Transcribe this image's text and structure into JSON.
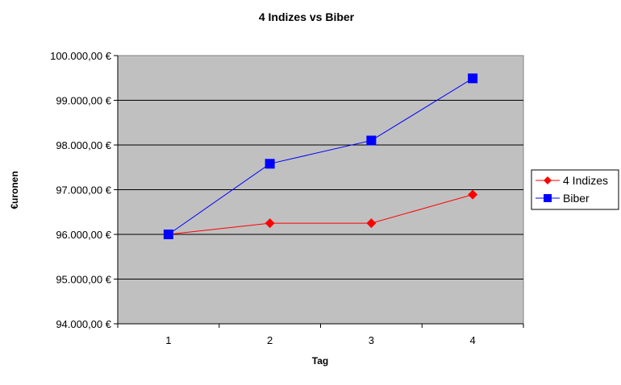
{
  "chart_data": {
    "type": "line",
    "title": "4 Indizes vs Biber",
    "xlabel": "Tag",
    "ylabel": "€uronen",
    "categories": [
      "1",
      "2",
      "3",
      "4"
    ],
    "ylim": [
      94000,
      100000
    ],
    "ytick_values": [
      94000,
      95000,
      96000,
      97000,
      98000,
      99000,
      100000
    ],
    "ytick_labels": [
      "94.000,00 €",
      "95.000,00 €",
      "96.000,00 €",
      "97.000,00 €",
      "98.000,00 €",
      "99.000,00 €",
      "100.000,00 €"
    ],
    "grid": "horizontal",
    "legend_position": "right",
    "plot_background": "#c0c0c0",
    "series": [
      {
        "name": "4 Indizes",
        "values": [
          96000,
          96250,
          96250,
          96890
        ],
        "color": "#ff0000",
        "marker": "diamond"
      },
      {
        "name": "Biber",
        "values": [
          96000,
          97580,
          98100,
          99490
        ],
        "color": "#0000ff",
        "marker": "square"
      }
    ]
  }
}
